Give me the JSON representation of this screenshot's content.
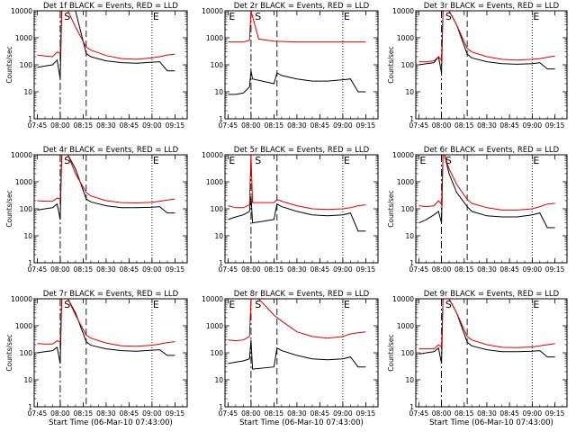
{
  "colors": {
    "events": "#000000",
    "lld": "#dd0000",
    "axes": "#000000",
    "background": "#ffffff"
  },
  "chart_data": [
    {
      "type": "line",
      "title": "Det 1f BLACK = Events, RED = LLD",
      "ylabel": "Counts/sec",
      "xlabel": "",
      "y_scale": "log",
      "ylim": [
        1,
        10000
      ],
      "x_ticks": [
        "07:45",
        "08:00",
        "08:15",
        "08:30",
        "08:45",
        "09:00",
        "09:15"
      ],
      "y_ticks": [
        "1",
        "10",
        "100",
        "1000",
        "10000"
      ],
      "markers": [
        "S",
        "E"
      ],
      "series": [
        {
          "name": "Events",
          "x": [
            "07:45",
            "07:50",
            "07:55",
            "07:58",
            "08:00",
            "08:01",
            "08:02",
            "08:05",
            "08:10",
            "08:17",
            "08:20",
            "08:30",
            "08:40",
            "08:50",
            "09:00",
            "09:05",
            "09:10",
            "09:15"
          ],
          "values": [
            80,
            90,
            100,
            150,
            30,
            10000,
            10000,
            10000,
            10000,
            260,
            200,
            140,
            120,
            115,
            125,
            130,
            60,
            60
          ]
        },
        {
          "name": "LLD",
          "x": [
            "07:45",
            "07:50",
            "07:55",
            "07:58",
            "08:00",
            "08:01",
            "08:02",
            "08:05",
            "08:10",
            "08:17",
            "08:20",
            "08:30",
            "08:40",
            "08:50",
            "09:00",
            "09:05",
            "09:10",
            "09:15"
          ],
          "values": [
            230,
            210,
            200,
            300,
            260,
            10000,
            10000,
            10000,
            2500,
            450,
            350,
            220,
            170,
            160,
            180,
            200,
            230,
            250
          ]
        }
      ]
    },
    {
      "type": "line",
      "title": "Det 2r BLACK = Events, RED = LLD",
      "ylabel": "",
      "xlabel": "",
      "y_scale": "log",
      "ylim": [
        1,
        10000
      ],
      "x_ticks": [
        "07:45",
        "08:00",
        "08:15",
        "08:30",
        "08:45",
        "09:00",
        "09:15"
      ],
      "y_ticks": [
        "1",
        "10",
        "100",
        "1000",
        "10000"
      ],
      "markers": [
        "E",
        "S",
        "E"
      ],
      "series": [
        {
          "name": "Events",
          "x": [
            "07:45",
            "07:50",
            "07:55",
            "07:59",
            "08:00",
            "08:01",
            "08:15",
            "08:17",
            "08:20",
            "08:30",
            "08:40",
            "08:50",
            "09:00",
            "09:05",
            "09:10",
            "09:15"
          ],
          "values": [
            8,
            8,
            9,
            15,
            60,
            30,
            20,
            50,
            40,
            30,
            25,
            25,
            28,
            30,
            10,
            10
          ]
        },
        {
          "name": "LLD",
          "x": [
            "07:45",
            "07:50",
            "07:55",
            "07:59",
            "08:00",
            "08:05",
            "08:15",
            "08:30",
            "08:45",
            "09:00",
            "09:15"
          ],
          "values": [
            700,
            700,
            700,
            800,
            10000,
            900,
            750,
            700,
            700,
            700,
            700
          ]
        }
      ]
    },
    {
      "type": "line",
      "title": "Det 3r BLACK = Events, RED = LLD",
      "ylabel": "Counts/sec",
      "xlabel": "",
      "y_scale": "log",
      "ylim": [
        1,
        10000
      ],
      "x_ticks": [
        "07:45",
        "08:00",
        "08:15",
        "08:30",
        "08:45",
        "09:00",
        "09:15"
      ],
      "y_ticks": [
        "1",
        "10",
        "100",
        "1000",
        "10000"
      ],
      "markers": [
        "S",
        "E"
      ],
      "series": [
        {
          "name": "Events",
          "x": [
            "07:45",
            "07:50",
            "07:55",
            "07:58",
            "08:00",
            "08:01",
            "08:02",
            "08:05",
            "08:10",
            "08:17",
            "08:20",
            "08:30",
            "08:40",
            "08:50",
            "09:00",
            "09:05",
            "09:10",
            "09:15"
          ],
          "values": [
            100,
            110,
            120,
            200,
            50,
            10000,
            10000,
            10000,
            3000,
            250,
            180,
            130,
            110,
            105,
            110,
            120,
            70,
            70
          ]
        },
        {
          "name": "LLD",
          "x": [
            "07:45",
            "07:50",
            "07:55",
            "07:58",
            "08:00",
            "08:01",
            "08:02",
            "08:05",
            "08:10",
            "08:17",
            "08:20",
            "08:30",
            "08:40",
            "08:50",
            "09:00",
            "09:05",
            "09:10",
            "09:15"
          ],
          "values": [
            130,
            130,
            140,
            200,
            150,
            10000,
            10000,
            10000,
            3000,
            400,
            300,
            200,
            160,
            150,
            160,
            170,
            190,
            210
          ]
        }
      ]
    },
    {
      "type": "line",
      "title": "Det 4r BLACK = Events, RED = LLD",
      "ylabel": "Counts/sec",
      "xlabel": "",
      "y_scale": "log",
      "ylim": [
        1,
        10000
      ],
      "x_ticks": [
        "07:45",
        "08:00",
        "08:15",
        "08:30",
        "08:45",
        "09:00",
        "09:15"
      ],
      "y_ticks": [
        "1",
        "10",
        "100",
        "1000",
        "10000"
      ],
      "markers": [
        "S",
        "E"
      ],
      "series": [
        {
          "name": "Events",
          "x": [
            "07:45",
            "07:50",
            "07:55",
            "07:58",
            "08:00",
            "08:01",
            "08:02",
            "08:05",
            "08:10",
            "08:17",
            "08:20",
            "08:30",
            "08:40",
            "08:50",
            "09:00",
            "09:05",
            "09:10",
            "09:15"
          ],
          "values": [
            90,
            100,
            110,
            150,
            40,
            10000,
            10000,
            10000,
            3000,
            230,
            180,
            130,
            110,
            110,
            115,
            120,
            70,
            70
          ]
        },
        {
          "name": "LLD",
          "x": [
            "07:45",
            "07:50",
            "07:55",
            "07:58",
            "08:00",
            "08:01",
            "08:02",
            "08:05",
            "08:10",
            "08:17",
            "08:20",
            "08:30",
            "08:40",
            "08:50",
            "09:00",
            "09:05",
            "09:10",
            "09:15"
          ],
          "values": [
            200,
            190,
            190,
            250,
            230,
            10000,
            10000,
            10000,
            2000,
            400,
            300,
            200,
            170,
            165,
            175,
            190,
            210,
            230
          ]
        }
      ]
    },
    {
      "type": "line",
      "title": "Det 5r BLACK = Events, RED = LLD",
      "ylabel": "",
      "xlabel": "",
      "y_scale": "log",
      "ylim": [
        1,
        10000
      ],
      "x_ticks": [
        "07:45",
        "08:00",
        "08:15",
        "08:30",
        "08:45",
        "09:00",
        "09:15"
      ],
      "y_ticks": [
        "1",
        "10",
        "100",
        "1000",
        "10000"
      ],
      "markers": [
        "E",
        "S",
        "E"
      ],
      "series": [
        {
          "name": "Events",
          "x": [
            "07:45",
            "07:50",
            "07:55",
            "07:59",
            "08:00",
            "08:01",
            "08:15",
            "08:17",
            "08:20",
            "08:30",
            "08:40",
            "08:50",
            "09:00",
            "09:05",
            "09:10",
            "09:15"
          ],
          "values": [
            40,
            50,
            60,
            80,
            300,
            30,
            40,
            150,
            120,
            80,
            60,
            55,
            60,
            70,
            15,
            15
          ]
        },
        {
          "name": "LLD",
          "x": [
            "07:45",
            "07:50",
            "07:55",
            "07:59",
            "08:00",
            "08:01",
            "08:15",
            "08:17",
            "08:20",
            "08:30",
            "08:40",
            "08:50",
            "09:00",
            "09:05",
            "09:10",
            "09:15"
          ],
          "values": [
            130,
            110,
            110,
            140,
            10000,
            170,
            170,
            220,
            190,
            130,
            100,
            95,
            100,
            110,
            130,
            140
          ]
        }
      ]
    },
    {
      "type": "line",
      "title": "Det 6r BLACK = Events, RED = LLD",
      "ylabel": "Counts/sec",
      "xlabel": "",
      "y_scale": "log",
      "ylim": [
        1,
        10000
      ],
      "x_ticks": [
        "07:45",
        "08:00",
        "08:15",
        "08:30",
        "08:45",
        "09:00",
        "09:15"
      ],
      "y_ticks": [
        "1",
        "10",
        "100",
        "1000",
        "10000"
      ],
      "markers": [
        "E",
        "S",
        "E"
      ],
      "series": [
        {
          "name": "Events",
          "x": [
            "07:45",
            "07:50",
            "07:55",
            "07:58",
            "08:00",
            "08:01",
            "08:02",
            "08:05",
            "08:10",
            "08:17",
            "08:20",
            "08:30",
            "08:40",
            "08:50",
            "09:00",
            "09:05",
            "09:10",
            "09:15"
          ],
          "values": [
            30,
            40,
            60,
            80,
            30,
            10000,
            10000,
            2000,
            400,
            120,
            80,
            55,
            50,
            50,
            60,
            70,
            20,
            20
          ]
        },
        {
          "name": "LLD",
          "x": [
            "07:45",
            "07:50",
            "07:55",
            "07:58",
            "08:00",
            "08:01",
            "08:02",
            "08:05",
            "08:10",
            "08:17",
            "08:20",
            "08:30",
            "08:40",
            "08:50",
            "09:00",
            "09:05",
            "09:10",
            "09:15"
          ],
          "values": [
            130,
            120,
            130,
            200,
            150,
            10000,
            10000,
            3000,
            800,
            220,
            160,
            110,
            90,
            90,
            100,
            120,
            150,
            160
          ]
        }
      ]
    },
    {
      "type": "line",
      "title": "Det 7r BLACK = Events, RED = LLD",
      "ylabel": "Counts/sec",
      "xlabel": "Start Time (06-Mar-10 07:43:00)",
      "y_scale": "log",
      "ylim": [
        1,
        10000
      ],
      "x_ticks": [
        "07:45",
        "08:00",
        "08:15",
        "08:30",
        "08:45",
        "09:00",
        "09:15"
      ],
      "y_ticks": [
        "1",
        "10",
        "100",
        "1000",
        "10000"
      ],
      "markers": [
        "S",
        "E"
      ],
      "series": [
        {
          "name": "Events",
          "x": [
            "07:45",
            "07:50",
            "07:55",
            "07:58",
            "08:00",
            "08:01",
            "08:02",
            "08:05",
            "08:10",
            "08:17",
            "08:20",
            "08:30",
            "08:40",
            "08:50",
            "09:00",
            "09:05",
            "09:10",
            "09:15"
          ],
          "values": [
            100,
            110,
            120,
            160,
            40,
            10000,
            10000,
            10000,
            3000,
            260,
            190,
            140,
            120,
            115,
            125,
            130,
            80,
            80
          ]
        },
        {
          "name": "LLD",
          "x": [
            "07:45",
            "07:50",
            "07:55",
            "07:58",
            "08:00",
            "08:01",
            "08:02",
            "08:05",
            "08:10",
            "08:17",
            "08:20",
            "08:30",
            "08:40",
            "08:50",
            "09:00",
            "09:05",
            "09:10",
            "09:15"
          ],
          "values": [
            220,
            210,
            210,
            280,
            250,
            10000,
            10000,
            10000,
            2500,
            450,
            350,
            230,
            180,
            175,
            190,
            210,
            240,
            260
          ]
        }
      ]
    },
    {
      "type": "line",
      "title": "Det 8r BLACK = Events, RED = LLD",
      "ylabel": "",
      "xlabel": "Start Time (06-Mar-10 07:43:00)",
      "y_scale": "log",
      "ylim": [
        1,
        10000
      ],
      "x_ticks": [
        "07:45",
        "08:00",
        "08:15",
        "08:30",
        "08:45",
        "09:00",
        "09:15"
      ],
      "y_ticks": [
        "1",
        "10",
        "100",
        "1000",
        "10000"
      ],
      "markers": [
        "E",
        "S",
        "E"
      ],
      "series": [
        {
          "name": "Events",
          "x": [
            "07:45",
            "07:50",
            "07:55",
            "07:59",
            "08:00",
            "08:01",
            "08:15",
            "08:17",
            "08:20",
            "08:30",
            "08:40",
            "08:50",
            "09:00",
            "09:05",
            "09:10",
            "09:15"
          ],
          "values": [
            40,
            45,
            50,
            60,
            300,
            25,
            30,
            150,
            120,
            80,
            60,
            55,
            60,
            70,
            30,
            30
          ]
        },
        {
          "name": "LLD",
          "x": [
            "07:45",
            "07:50",
            "07:55",
            "07:59",
            "08:00",
            "08:05",
            "08:10",
            "08:15",
            "08:20",
            "08:30",
            "08:40",
            "08:50",
            "09:00",
            "09:05",
            "09:10",
            "09:15"
          ],
          "values": [
            300,
            280,
            300,
            400,
            10000,
            10000,
            5000,
            2500,
            1500,
            600,
            400,
            350,
            400,
            500,
            550,
            600
          ]
        }
      ]
    },
    {
      "type": "line",
      "title": "Det 9r BLACK = Events, RED = LLD",
      "ylabel": "Counts/sec",
      "xlabel": "Start Time (06-Mar-10 07:43:00)",
      "y_scale": "log",
      "ylim": [
        1,
        10000
      ],
      "x_ticks": [
        "07:45",
        "08:00",
        "08:15",
        "08:30",
        "08:45",
        "09:00",
        "09:15"
      ],
      "y_ticks": [
        "1",
        "10",
        "100",
        "1000",
        "10000"
      ],
      "markers": [
        "S",
        "E"
      ],
      "series": [
        {
          "name": "Events",
          "x": [
            "07:45",
            "07:50",
            "07:55",
            "07:58",
            "08:00",
            "08:01",
            "08:02",
            "08:05",
            "08:10",
            "08:17",
            "08:20",
            "08:30",
            "08:40",
            "08:50",
            "09:00",
            "09:05",
            "09:10",
            "09:15"
          ],
          "values": [
            90,
            100,
            110,
            150,
            40,
            10000,
            10000,
            10000,
            3000,
            250,
            180,
            130,
            110,
            110,
            115,
            120,
            70,
            70
          ]
        },
        {
          "name": "LLD",
          "x": [
            "07:45",
            "07:50",
            "07:55",
            "07:58",
            "08:00",
            "08:01",
            "08:02",
            "08:05",
            "08:10",
            "08:17",
            "08:20",
            "08:30",
            "08:40",
            "08:50",
            "09:00",
            "09:05",
            "09:10",
            "09:15"
          ],
          "values": [
            140,
            140,
            140,
            200,
            160,
            10000,
            10000,
            10000,
            3000,
            400,
            300,
            200,
            160,
            155,
            165,
            180,
            200,
            220
          ]
        }
      ]
    }
  ]
}
